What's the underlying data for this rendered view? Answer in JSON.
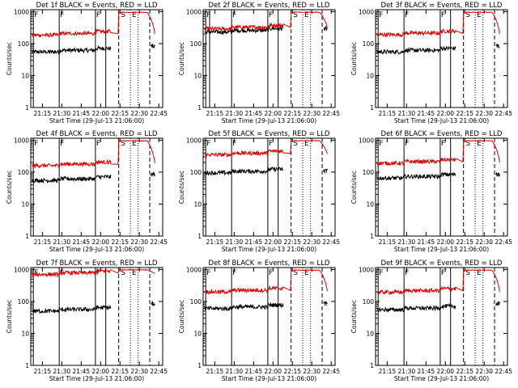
{
  "chart_data": {
    "type": "line",
    "scale": {
      "y": "log",
      "ylim": [
        1,
        1000
      ]
    },
    "xlim": [
      "21:06",
      "22:48"
    ],
    "x_tick_labels": [
      "21:15",
      "21:30",
      "21:45",
      "22:00",
      "22:15",
      "22:30",
      "22:45"
    ],
    "y_tick_labels": [
      "1",
      "10",
      "100",
      "1000"
    ],
    "ylabel": "Counts/sec",
    "xlabel": "Start Time (29-Jul-13 21:06:00)",
    "colors": {
      "black": "#000000",
      "red": "#e00000"
    },
    "marker_labels": {
      "F": "F",
      "S": "S",
      "E": "E",
      "A": "A",
      "N": "N",
      "R": "R"
    },
    "segments_time": {
      "data1": [
        "21:07",
        "22:08"
      ],
      "data2": [
        "22:15",
        "22:42"
      ],
      "jump": "22:14"
    },
    "vertical_lines": {
      "solid": [
        "21:08",
        "21:28",
        "21:56",
        "22:04"
      ],
      "dashed": [
        "22:14",
        "22:38"
      ],
      "dotted": [
        "22:23",
        "22:29"
      ]
    },
    "panels": [
      {
        "title": "Det 1f BLACK = Events, RED = LLD",
        "black_level": 55,
        "red_level": 185,
        "red_high": 950,
        "red_end": 200,
        "black_end": 85,
        "solid_lines": 4
      },
      {
        "title": "Det 2f BLACK = Events, RED = LLD",
        "black_level": 230,
        "red_level": 290,
        "red_high": 960,
        "red_end": 320,
        "black_end": 300,
        "solid_lines": 5
      },
      {
        "title": "Det 3f BLACK = Events, RED = LLD",
        "black_level": 55,
        "red_level": 190,
        "red_high": 950,
        "red_end": 200,
        "black_end": 85,
        "solid_lines": 4
      },
      {
        "title": "Det 4f BLACK = Events, RED = LLD",
        "black_level": 55,
        "red_level": 160,
        "red_high": 950,
        "red_end": 190,
        "black_end": 85,
        "solid_lines": 3
      },
      {
        "title": "Det 5f BLACK = Events, RED = LLD",
        "black_level": 95,
        "red_level": 350,
        "red_high": 960,
        "red_end": 380,
        "black_end": 110,
        "solid_lines": 4
      },
      {
        "title": "Det 6f BLACK = Events, RED = LLD",
        "black_level": 65,
        "red_level": 190,
        "red_high": 950,
        "red_end": 200,
        "black_end": 85,
        "solid_lines": 4
      },
      {
        "title": "Det 7f BLACK = Events, RED = LLD",
        "black_level": 50,
        "red_level": 700,
        "red_high": 980,
        "red_end": 750,
        "black_end": 85,
        "solid_lines": 4
      },
      {
        "title": "Det 8f BLACK = Events, RED = LLD",
        "black_level": 60,
        "red_level": 200,
        "red_high": 950,
        "red_end": 210,
        "black_end": 85,
        "solid_lines": 4
      },
      {
        "title": "Det 9f BLACK = Events, RED = LLD",
        "black_level": 55,
        "red_level": 195,
        "red_high": 950,
        "red_end": 200,
        "black_end": 85,
        "solid_lines": 4
      }
    ]
  }
}
